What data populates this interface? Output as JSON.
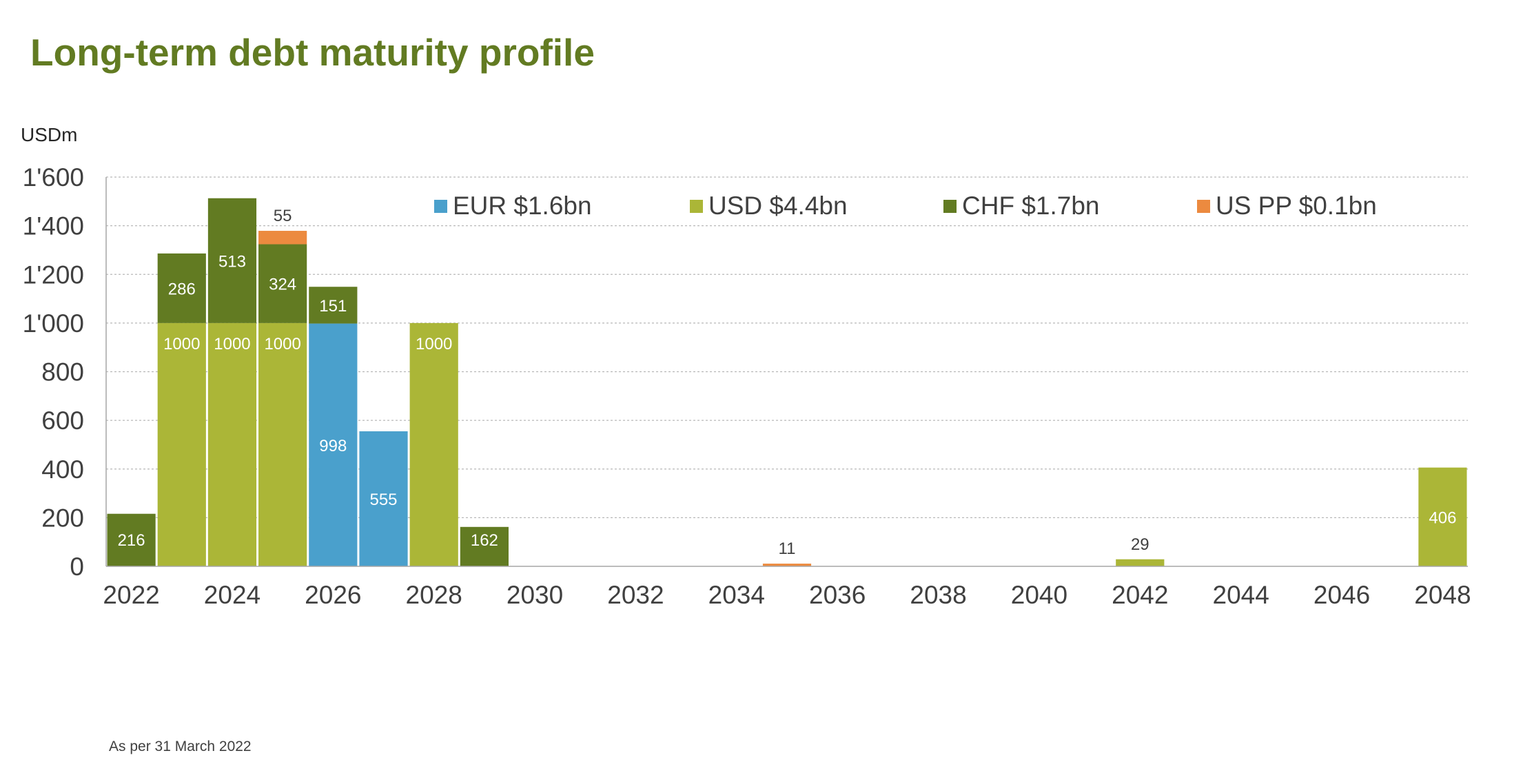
{
  "page": {
    "title": "Long-term debt maturity profile",
    "footnote": "As per 31 March 2022"
  },
  "chart_data": {
    "type": "bar",
    "stacked": true,
    "unit_label": "USDm",
    "ylim": [
      0,
      1600
    ],
    "yticks": [
      0,
      200,
      400,
      600,
      800,
      1000,
      1200,
      1400,
      1600
    ],
    "ytick_labels": [
      "0",
      "200",
      "400",
      "600",
      "800",
      "1'000",
      "1'200",
      "1'400",
      "1'600"
    ],
    "categories": [
      2022,
      2023,
      2024,
      2025,
      2026,
      2027,
      2028,
      2029,
      2030,
      2031,
      2032,
      2033,
      2034,
      2035,
      2036,
      2037,
      2038,
      2039,
      2040,
      2041,
      2042,
      2043,
      2044,
      2045,
      2046,
      2047,
      2048
    ],
    "xtick_labels": [
      "2022",
      "2024",
      "2026",
      "2028",
      "2030",
      "2032",
      "2034",
      "2036",
      "2038",
      "2040",
      "2042",
      "2044",
      "2046",
      "2048"
    ],
    "grid": true,
    "legend_position": "top",
    "series": [
      {
        "name": "EUR $1.6bn",
        "color": "#4aa0cc",
        "values": [
          0,
          0,
          0,
          0,
          998,
          555,
          0,
          0,
          0,
          0,
          0,
          0,
          0,
          0,
          0,
          0,
          0,
          0,
          0,
          0,
          0,
          0,
          0,
          0,
          0,
          0,
          0
        ]
      },
      {
        "name": "USD $4.4bn",
        "color": "#abb637",
        "values": [
          0,
          1000,
          1000,
          1000,
          0,
          0,
          1000,
          0,
          0,
          0,
          0,
          0,
          0,
          0,
          0,
          0,
          0,
          0,
          0,
          0,
          29,
          0,
          0,
          0,
          0,
          0,
          406
        ]
      },
      {
        "name": "CHF $1.7bn",
        "color": "#627b22",
        "values": [
          216,
          286,
          513,
          324,
          151,
          0,
          0,
          162,
          0,
          0,
          0,
          0,
          0,
          0,
          0,
          0,
          0,
          0,
          0,
          0,
          0,
          0,
          0,
          0,
          0,
          0,
          0
        ]
      },
      {
        "name": "US PP $0.1bn",
        "color": "#ec8a3f",
        "values": [
          0,
          0,
          0,
          55,
          0,
          0,
          0,
          0,
          0,
          0,
          0,
          0,
          0,
          11,
          0,
          0,
          0,
          0,
          0,
          0,
          0,
          0,
          0,
          0,
          0,
          0,
          0
        ]
      }
    ]
  }
}
